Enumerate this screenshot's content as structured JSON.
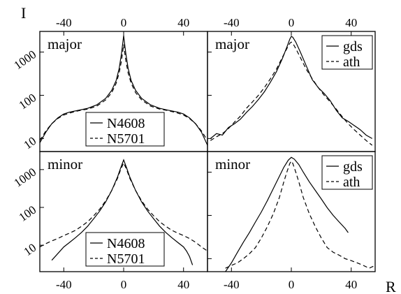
{
  "figure": {
    "y_axis_symbol": "I",
    "x_axis_symbol": "R",
    "y_tick_labels": [
      "1000",
      "100",
      "10"
    ],
    "x_tick_labels": [
      "-40",
      "0",
      "40"
    ]
  },
  "chart_data": [
    {
      "type": "line",
      "panel": "top-left",
      "title": "major",
      "xlim": [
        -56,
        56
      ],
      "ylim": [
        5,
        3000
      ],
      "yscale": "log",
      "legend_position": "bottom-right",
      "series": [
        {
          "name": "N4608",
          "style": "solid",
          "color": "#000000",
          "points": [
            [
              -56,
              8
            ],
            [
              -52,
              14
            ],
            [
              -48,
              22
            ],
            [
              -44,
              30
            ],
            [
              -40,
              37
            ],
            [
              -36,
              41
            ],
            [
              -30,
              45
            ],
            [
              -24,
              50
            ],
            [
              -18,
              60
            ],
            [
              -12,
              85
            ],
            [
              -8,
              130
            ],
            [
              -5,
              220
            ],
            [
              -3,
              420
            ],
            [
              -1.5,
              900
            ],
            [
              -0.5,
              1700
            ],
            [
              0,
              2400
            ],
            [
              0.5,
              1700
            ],
            [
              1.5,
              900
            ],
            [
              3,
              420
            ],
            [
              5,
              220
            ],
            [
              8,
              130
            ],
            [
              12,
              85
            ],
            [
              18,
              60
            ],
            [
              24,
              50
            ],
            [
              30,
              45
            ],
            [
              36,
              41
            ],
            [
              40,
              37
            ],
            [
              44,
              30
            ],
            [
              48,
              22
            ],
            [
              52,
              14
            ],
            [
              56,
              7
            ]
          ]
        },
        {
          "name": "N5701",
          "style": "dashed",
          "color": "#000000",
          "points": [
            [
              -56,
              9
            ],
            [
              -52,
              15
            ],
            [
              -48,
              22
            ],
            [
              -44,
              29
            ],
            [
              -40,
              35
            ],
            [
              -36,
              39
            ],
            [
              -30,
              44
            ],
            [
              -24,
              48
            ],
            [
              -18,
              56
            ],
            [
              -12,
              78
            ],
            [
              -8,
              115
            ],
            [
              -5,
              190
            ],
            [
              -3,
              330
            ],
            [
              -1.5,
              620
            ],
            [
              -0.5,
              1100
            ],
            [
              0,
              1500
            ],
            [
              0.5,
              1100
            ],
            [
              1.5,
              620
            ],
            [
              3,
              330
            ],
            [
              5,
              190
            ],
            [
              8,
              115
            ],
            [
              12,
              78
            ],
            [
              18,
              56
            ],
            [
              24,
              48
            ],
            [
              30,
              44
            ],
            [
              36,
              39
            ],
            [
              40,
              35
            ],
            [
              44,
              29
            ],
            [
              48,
              22
            ],
            [
              52,
              15
            ],
            [
              56,
              9
            ]
          ]
        }
      ]
    },
    {
      "type": "line",
      "panel": "top-right",
      "title": "major",
      "xlim": [
        -56,
        56
      ],
      "ylim": [
        5,
        3000
      ],
      "yscale": "log",
      "legend_position": "top-right",
      "series": [
        {
          "name": "gds",
          "style": "solid",
          "color": "#000000",
          "points": [
            [
              -54,
              10
            ],
            [
              -50,
              13
            ],
            [
              -46,
              12
            ],
            [
              -42,
              18
            ],
            [
              -38,
              22
            ],
            [
              -34,
              28
            ],
            [
              -30,
              40
            ],
            [
              -26,
              55
            ],
            [
              -22,
              80
            ],
            [
              -18,
              120
            ],
            [
              -14,
              200
            ],
            [
              -10,
              350
            ],
            [
              -6,
              700
            ],
            [
              -3,
              1300
            ],
            [
              -1,
              2000
            ],
            [
              0,
              2300
            ],
            [
              1,
              2200
            ],
            [
              3,
              1700
            ],
            [
              6,
              1000
            ],
            [
              10,
              480
            ],
            [
              14,
              230
            ],
            [
              18,
              150
            ],
            [
              22,
              110
            ],
            [
              26,
              75
            ],
            [
              30,
              45
            ],
            [
              34,
              30
            ],
            [
              38,
              25
            ],
            [
              42,
              20
            ],
            [
              46,
              16
            ],
            [
              50,
              12
            ],
            [
              54,
              10
            ]
          ]
        },
        {
          "name": "ath",
          "style": "dashed",
          "color": "#000000",
          "points": [
            [
              -54,
              9
            ],
            [
              -50,
              11
            ],
            [
              -46,
              13
            ],
            [
              -42,
              17
            ],
            [
              -38,
              24
            ],
            [
              -34,
              33
            ],
            [
              -30,
              50
            ],
            [
              -26,
              70
            ],
            [
              -22,
              100
            ],
            [
              -18,
              150
            ],
            [
              -14,
              240
            ],
            [
              -10,
              400
            ],
            [
              -6,
              750
            ],
            [
              -3,
              1200
            ],
            [
              -1,
              1600
            ],
            [
              0,
              1700
            ],
            [
              1,
              1600
            ],
            [
              3,
              1200
            ],
            [
              6,
              750
            ],
            [
              10,
              400
            ],
            [
              14,
              240
            ],
            [
              18,
              150
            ],
            [
              22,
              100
            ],
            [
              26,
              70
            ],
            [
              30,
              48
            ],
            [
              34,
              32
            ],
            [
              38,
              22
            ],
            [
              42,
              16
            ],
            [
              46,
              12
            ],
            [
              50,
              9
            ],
            [
              54,
              7
            ]
          ]
        }
      ]
    },
    {
      "type": "line",
      "panel": "bottom-left",
      "title": "minor",
      "xlim": [
        -56,
        56
      ],
      "ylim": [
        2,
        3000
      ],
      "yscale": "log",
      "legend_position": "bottom-right",
      "series": [
        {
          "name": "N4608",
          "style": "solid",
          "color": "#000000",
          "points": [
            [
              -48,
              4
            ],
            [
              -44,
              6
            ],
            [
              -40,
              9
            ],
            [
              -36,
              12
            ],
            [
              -32,
              16
            ],
            [
              -28,
              22
            ],
            [
              -24,
              32
            ],
            [
              -20,
              50
            ],
            [
              -16,
              80
            ],
            [
              -12,
              140
            ],
            [
              -8,
              280
            ],
            [
              -4,
              650
            ],
            [
              -2,
              1100
            ],
            [
              0,
              1800
            ],
            [
              2,
              1100
            ],
            [
              4,
              650
            ],
            [
              8,
              280
            ],
            [
              12,
              140
            ],
            [
              16,
              80
            ],
            [
              20,
              50
            ],
            [
              24,
              32
            ],
            [
              28,
              22
            ],
            [
              32,
              16
            ],
            [
              36,
              12
            ],
            [
              40,
              9
            ],
            [
              42,
              7
            ],
            [
              44,
              5
            ],
            [
              46,
              3
            ]
          ]
        },
        {
          "name": "N5701",
          "style": "dashed",
          "color": "#000000",
          "points": [
            [
              -56,
              9
            ],
            [
              -52,
              11
            ],
            [
              -48,
              13
            ],
            [
              -44,
              15
            ],
            [
              -40,
              18
            ],
            [
              -36,
              21
            ],
            [
              -32,
              25
            ],
            [
              -28,
              32
            ],
            [
              -24,
              42
            ],
            [
              -20,
              60
            ],
            [
              -16,
              90
            ],
            [
              -12,
              150
            ],
            [
              -8,
              280
            ],
            [
              -4,
              600
            ],
            [
              -2,
              1000
            ],
            [
              0,
              1500
            ],
            [
              2,
              1000
            ],
            [
              4,
              600
            ],
            [
              8,
              280
            ],
            [
              12,
              150
            ],
            [
              16,
              90
            ],
            [
              20,
              60
            ],
            [
              24,
              42
            ],
            [
              28,
              32
            ],
            [
              32,
              25
            ],
            [
              36,
              21
            ],
            [
              40,
              18
            ],
            [
              44,
              15
            ],
            [
              48,
              12
            ],
            [
              52,
              9
            ],
            [
              56,
              7
            ]
          ]
        }
      ]
    },
    {
      "type": "line",
      "panel": "bottom-right",
      "title": "minor",
      "xlim": [
        -56,
        56
      ],
      "ylim": [
        5,
        3000
      ],
      "yscale": "log",
      "legend_position": "top-right",
      "series": [
        {
          "name": "gds",
          "style": "solid",
          "color": "#000000",
          "points": [
            [
              -44,
              5
            ],
            [
              -40,
              8
            ],
            [
              -36,
              14
            ],
            [
              -32,
              24
            ],
            [
              -28,
              40
            ],
            [
              -24,
              70
            ],
            [
              -20,
              120
            ],
            [
              -16,
              220
            ],
            [
              -12,
              420
            ],
            [
              -8,
              800
            ],
            [
              -5,
              1300
            ],
            [
              -2,
              1900
            ],
            [
              0,
              2200
            ],
            [
              2,
              2000
            ],
            [
              5,
              1500
            ],
            [
              8,
              1000
            ],
            [
              12,
              600
            ],
            [
              16,
              380
            ],
            [
              20,
              240
            ],
            [
              24,
              150
            ],
            [
              28,
              100
            ],
            [
              32,
              70
            ],
            [
              36,
              50
            ],
            [
              38,
              40
            ]
          ]
        },
        {
          "name": "ath",
          "style": "dashed",
          "color": "#000000",
          "points": [
            [
              -44,
              6
            ],
            [
              -40,
              7
            ],
            [
              -36,
              8
            ],
            [
              -32,
              10
            ],
            [
              -28,
              13
            ],
            [
              -24,
              18
            ],
            [
              -20,
              30
            ],
            [
              -16,
              55
            ],
            [
              -12,
              110
            ],
            [
              -8,
              260
            ],
            [
              -5,
              600
            ],
            [
              -3,
              1000
            ],
            [
              -1,
              1600
            ],
            [
              0,
              1800
            ],
            [
              1,
              1600
            ],
            [
              3,
              1000
            ],
            [
              5,
              600
            ],
            [
              8,
              260
            ],
            [
              12,
              110
            ],
            [
              16,
              55
            ],
            [
              20,
              30
            ],
            [
              24,
              18
            ],
            [
              28,
              14
            ],
            [
              32,
              12
            ],
            [
              36,
              10
            ],
            [
              40,
              9
            ],
            [
              44,
              8
            ],
            [
              48,
              7
            ],
            [
              52,
              6
            ],
            [
              56,
              7
            ]
          ]
        }
      ]
    }
  ]
}
